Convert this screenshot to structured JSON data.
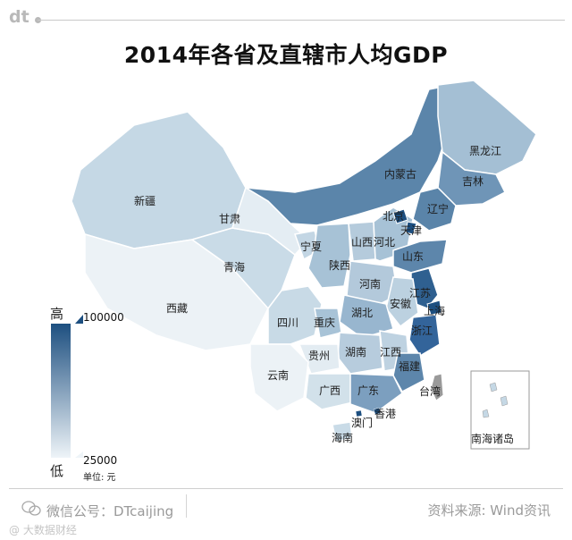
{
  "brand": "dt",
  "title": "2014年各省及直辖市人均GDP",
  "legend": {
    "high_label": "高",
    "low_label": "低",
    "max_value": "100000",
    "min_value": "25000",
    "unit": "单位: 元",
    "color_high": "#1d4f80",
    "color_low": "#eef4f8"
  },
  "provinces": {
    "heilongjiang": "黑龙江",
    "jilin": "吉林",
    "liaoning": "辽宁",
    "neimenggu": "内蒙古",
    "beijing": "北京",
    "tianjin": "天津",
    "hebei": "河北",
    "shanxi": "山西",
    "shandong": "山东",
    "xinjiang": "新疆",
    "gansu": "甘肃",
    "ningxia": "宁夏",
    "qinghai": "青海",
    "shaanxi": "陕西",
    "henan": "河南",
    "jiangsu": "江苏",
    "anhui": "安徽",
    "shanghai": "上海",
    "xizang": "西藏",
    "sichuan": "四川",
    "chongqing": "重庆",
    "hubei": "湖北",
    "zhejiang": "浙江",
    "guizhou": "贵州",
    "hunan": "湖南",
    "jiangxi": "江西",
    "fujian": "福建",
    "yunnan": "云南",
    "guangxi": "广西",
    "guangdong": "广东",
    "taiwan": "台湾",
    "xianggang": "香港",
    "aomen": "澳门",
    "hainan": "海南",
    "nanhai": "南海诸岛"
  },
  "footer": {
    "wechat": "微信公号：DTcaijing",
    "source": "资料来源: Wind资讯",
    "watermark": "@ 大数据财经"
  }
}
